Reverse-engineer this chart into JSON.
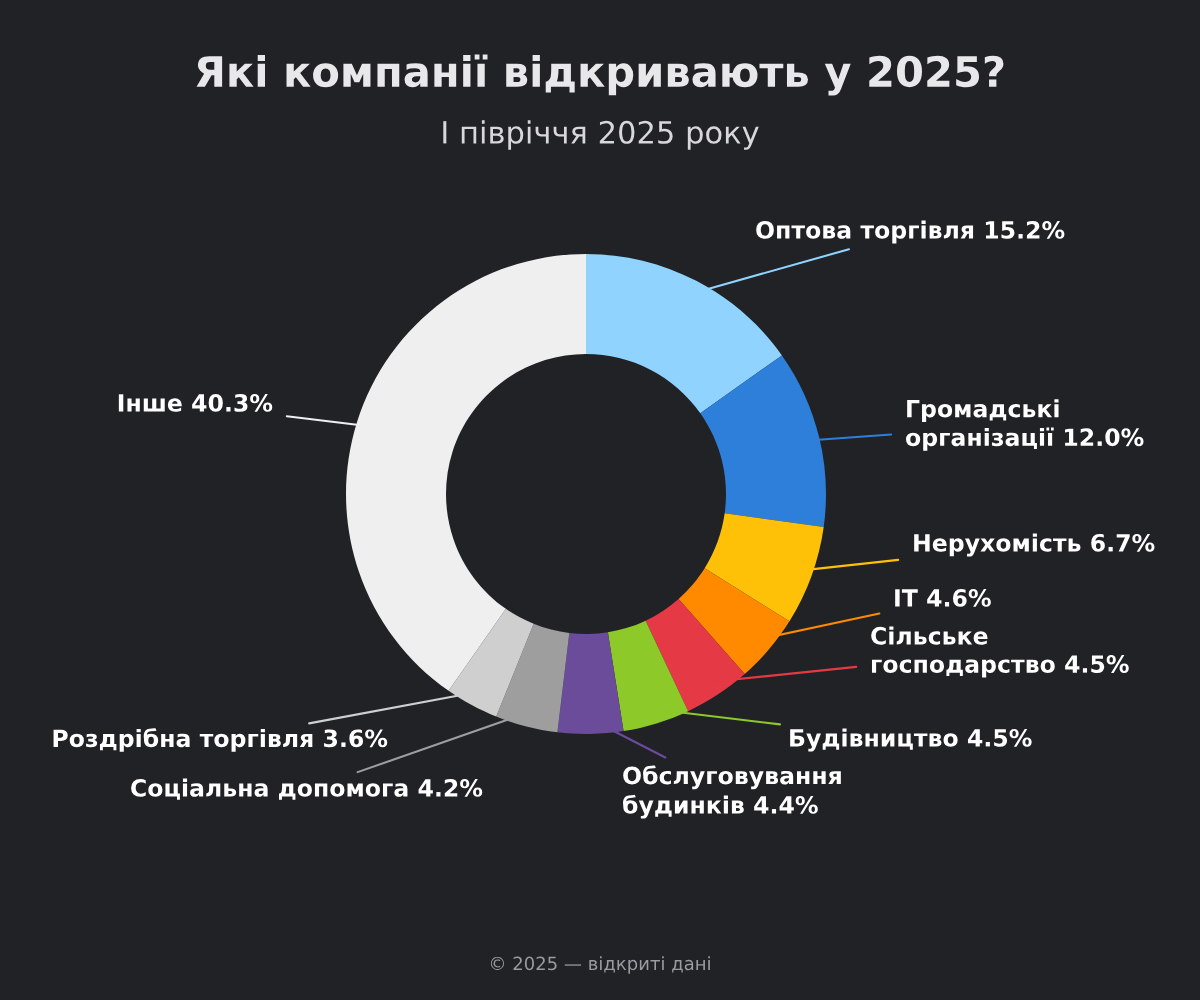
{
  "chart_data": {
    "type": "donut",
    "title": "Які компанії відкривають у 2025?",
    "subtitle": "І півріччя 2025 року",
    "categories": [
      "Оптова торгівля",
      "Громадські організації",
      "Нерухомість",
      "IT",
      "Сільське господарство",
      "Будівництво",
      "Обслуговування будинків",
      "Соціальна допомога",
      "Роздрібна торгівля",
      "Інше"
    ],
    "values": [
      15.2,
      12.0,
      6.7,
      4.6,
      4.5,
      4.5,
      4.4,
      4.2,
      3.6,
      40.3
    ],
    "value_labels": [
      "15.2%",
      "12.0%",
      "6.7%",
      "4.6%",
      "4.5%",
      "4.5%",
      "4.4%",
      "4.2%",
      "3.6%",
      "40.3%"
    ],
    "colors": [
      "#8fd3fe",
      "#2e7fd9",
      "#ffc107",
      "#ff8a00",
      "#e53945",
      "#8cc929",
      "#6b4c9a",
      "#9e9e9e",
      "#cfcfcf",
      "#efefef"
    ],
    "annotations": [
      "© 2025 — відкриті дані"
    ]
  }
}
